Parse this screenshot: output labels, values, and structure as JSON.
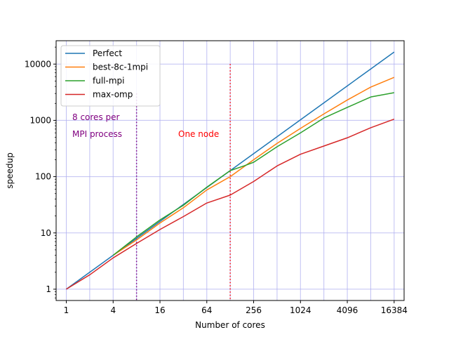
{
  "chart_data": {
    "type": "line",
    "title": "",
    "xlabel": "Number of cores",
    "ylabel": "speedup",
    "xscale": "log2",
    "yscale": "log10",
    "xlim": [
      0.74,
      22000
    ],
    "ylim": [
      0.63,
      26000
    ],
    "xticks": [
      1,
      4,
      16,
      64,
      256,
      1024,
      4096,
      16384
    ],
    "xtick_labels": [
      "1",
      "4",
      "16",
      "64",
      "256",
      "1024",
      "4096",
      "16384"
    ],
    "yticks": [
      1,
      10,
      100,
      1000,
      10000
    ],
    "ytick_labels": [
      "1",
      "10",
      "100",
      "1000",
      "10000"
    ],
    "grid": true,
    "grid_color": "#b0b0f0",
    "legend_position": "top-left",
    "series": [
      {
        "name": "Perfect",
        "color": "#1f77b4",
        "x": [
          1,
          2,
          4,
          8,
          16,
          32,
          64,
          128,
          256,
          512,
          1024,
          2048,
          4096,
          8192,
          16384
        ],
        "values": [
          1,
          2,
          4,
          8,
          16,
          32,
          64,
          128,
          256,
          512,
          1024,
          2048,
          4096,
          8192,
          16384
        ]
      },
      {
        "name": "best-8c-1mpi",
        "color": "#ff7f0e",
        "x": [
          4,
          8,
          16,
          32,
          64,
          128,
          256,
          512,
          1024,
          2048,
          4096,
          8192,
          16384
        ],
        "values": [
          4,
          7.5,
          15,
          28,
          58,
          100,
          200,
          390,
          720,
          1300,
          2300,
          3900,
          5800
        ]
      },
      {
        "name": "full-mpi",
        "color": "#2ca02c",
        "x": [
          4,
          8,
          16,
          32,
          64,
          128,
          192,
          256,
          512,
          1024,
          2048,
          4096,
          8192,
          16384
        ],
        "values": [
          4,
          8.5,
          17,
          31,
          65,
          128,
          155,
          180,
          340,
          600,
          1100,
          1700,
          2600,
          3100
        ]
      },
      {
        "name": "max-omp",
        "color": "#d62728",
        "x": [
          1,
          2,
          4,
          8,
          16,
          32,
          64,
          128,
          256,
          512,
          1024,
          2048,
          4096,
          8192,
          16384
        ],
        "values": [
          1,
          1.8,
          3.6,
          6.5,
          11.5,
          19.5,
          34,
          47,
          82,
          155,
          250,
          350,
          490,
          740,
          1050
        ]
      }
    ],
    "annotations": [
      {
        "id": "cores_per_mpi",
        "line1": "8 cores per",
        "line2": "MPI process",
        "color": "#800080",
        "x_line": 8,
        "line_top": 3000
      },
      {
        "id": "one_node",
        "text": "One node",
        "color": "#ff0000",
        "x_line": 128,
        "line_top": 10000
      }
    ]
  }
}
